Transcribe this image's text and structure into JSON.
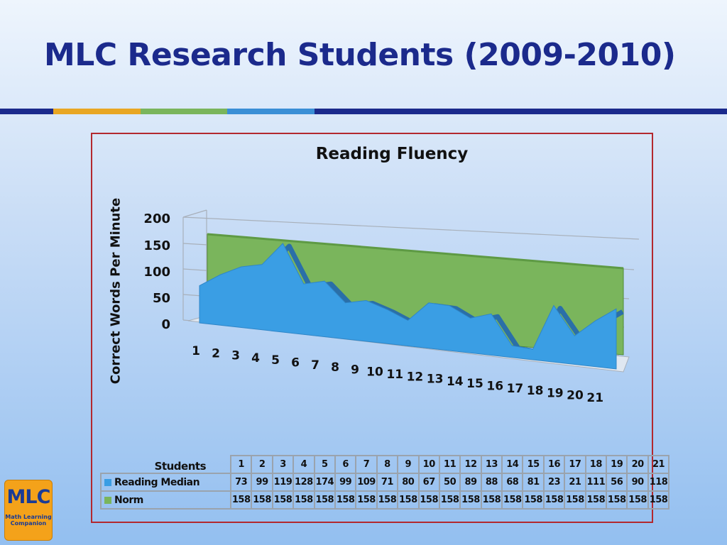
{
  "slide": {
    "title": "MLC Research Students (2009-2010)",
    "stripe_colors": [
      "#1b2a8c",
      "#e8a623",
      "#7ab55c",
      "#3a8fd6",
      "#1b2a8c"
    ]
  },
  "logo": {
    "text": "MLC",
    "subtitle": "Math Learning Companion",
    "background": "#f4a21a"
  },
  "chart_data": {
    "type": "area",
    "title": "Reading Fluency",
    "ylabel": "Correct Words Per Minute",
    "xlabel": "",
    "ylim": [
      0,
      200
    ],
    "yticks": [
      "200",
      "150",
      "100",
      "50",
      "0"
    ],
    "categories": [
      "1",
      "2",
      "3",
      "4",
      "5",
      "6",
      "7",
      "8",
      "9",
      "10",
      "11",
      "12",
      "13",
      "14",
      "15",
      "16",
      "17",
      "18",
      "19",
      "20",
      "21"
    ],
    "series": [
      {
        "name": "Norm",
        "color": "#7ab55c",
        "values": [
          158,
          158,
          158,
          158,
          158,
          158,
          158,
          158,
          158,
          158,
          158,
          158,
          158,
          158,
          158,
          158,
          158,
          158,
          158,
          158,
          158
        ]
      },
      {
        "name": "Reading Median",
        "color": "#3a9ee4",
        "values": [
          73,
          99,
          119,
          128,
          174,
          99,
          109,
          71,
          80,
          67,
          50,
          89,
          88,
          68,
          81,
          23,
          21,
          111,
          56,
          90,
          118
        ]
      }
    ],
    "table": {
      "header_label": "Students",
      "rows": [
        {
          "label": "Reading Median",
          "values": [
            "73",
            "99",
            "119",
            "128",
            "174",
            "99",
            "109",
            "71",
            "80",
            "67",
            "50",
            "89",
            "88",
            "68",
            "81",
            "23",
            "21",
            "111",
            "56",
            "90",
            "118"
          ]
        },
        {
          "label": "Norm",
          "values": [
            "158",
            "158",
            "158",
            "158",
            "158",
            "158",
            "158",
            "158",
            "158",
            "158",
            "158",
            "158",
            "158",
            "158",
            "158",
            "158",
            "158",
            "158",
            "158",
            "158",
            "158"
          ]
        }
      ]
    },
    "grid": true,
    "legend": "data-table"
  }
}
